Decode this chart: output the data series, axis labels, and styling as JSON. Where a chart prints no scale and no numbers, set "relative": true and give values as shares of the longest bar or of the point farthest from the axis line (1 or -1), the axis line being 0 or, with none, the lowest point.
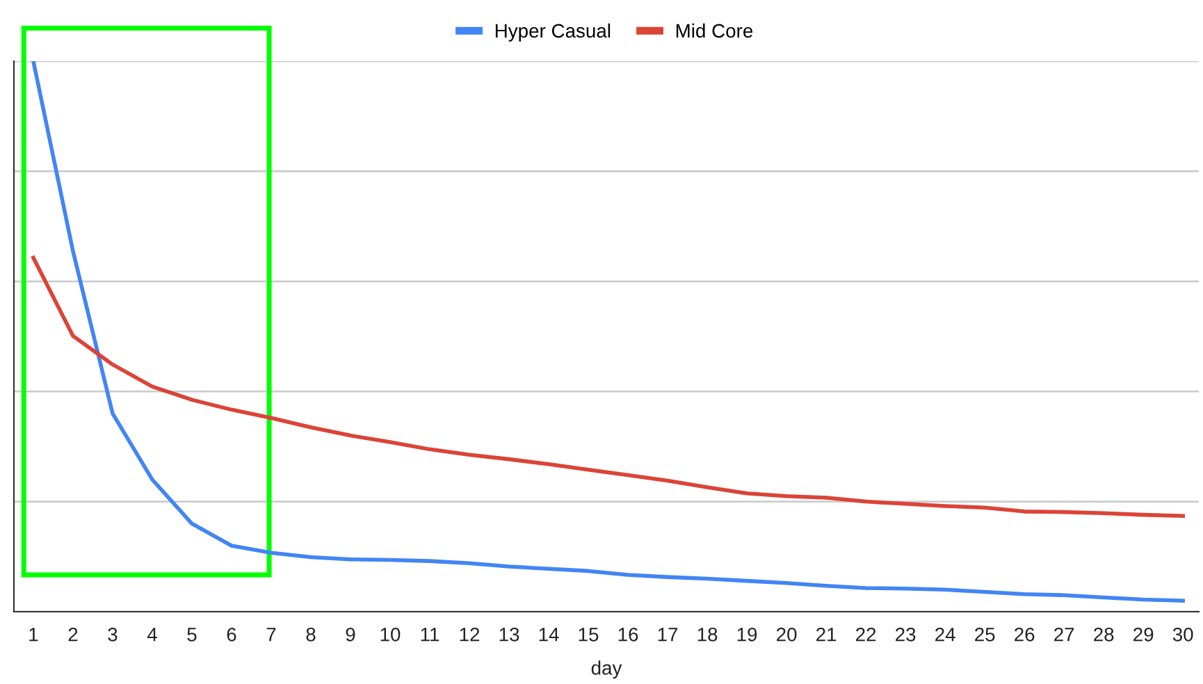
{
  "chart_data": {
    "type": "line",
    "xlabel": "day",
    "relative": true,
    "grid": "y",
    "legend": "top",
    "marker": "none",
    "line_style": "solid",
    "categories": [
      "1",
      "2",
      "3",
      "4",
      "5",
      "6",
      "7",
      "8",
      "9",
      "10",
      "11",
      "12",
      "13",
      "14",
      "15",
      "16",
      "17",
      "18",
      "19",
      "20",
      "21",
      "22",
      "23",
      "24",
      "25",
      "26",
      "27",
      "28",
      "29",
      "30"
    ],
    "series": [
      {
        "name": "Hyper Casual",
        "color": "#4285f4",
        "values": [
          1.0,
          0.655,
          0.36,
          0.24,
          0.16,
          0.12,
          0.107,
          0.099,
          0.095,
          0.094,
          0.092,
          0.088,
          0.082,
          0.078,
          0.074,
          0.067,
          0.063,
          0.06,
          0.056,
          0.052,
          0.047,
          0.043,
          0.042,
          0.04,
          0.036,
          0.032,
          0.03,
          0.026,
          0.022,
          0.02
        ]
      },
      {
        "name": "Mid Core",
        "color": "#db4437",
        "values": [
          0.643,
          0.501,
          0.449,
          0.409,
          0.385,
          0.367,
          0.352,
          0.335,
          0.32,
          0.308,
          0.295,
          0.285,
          0.277,
          0.268,
          0.258,
          0.248,
          0.238,
          0.226,
          0.215,
          0.21,
          0.207,
          0.2,
          0.196,
          0.192,
          0.189,
          0.182,
          0.181,
          0.179,
          0.176,
          0.174
        ]
      }
    ]
  }
}
